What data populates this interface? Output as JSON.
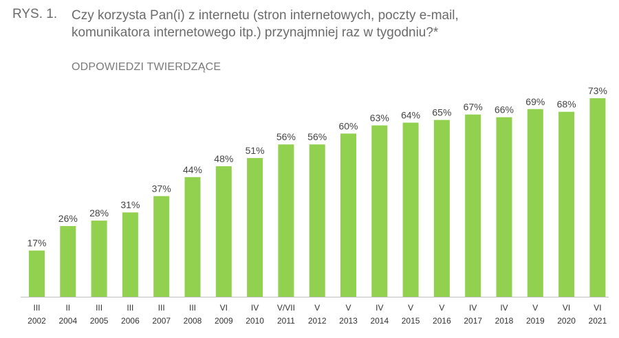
{
  "figure_label": "RYS. 1.",
  "title_line1": "Czy korzysta Pan(i) z internetu (stron internetowych, poczty e-mail,",
  "title_line2": "komunikatora internetowego itp.) przynajmniej raz w tygodniu?*",
  "subtitle": "ODPOWIEDZI TWIERDZĄCE",
  "colors": {
    "bar": "#92d050",
    "axis": "#bfbfbf"
  },
  "chart_data": {
    "type": "bar",
    "title": "Czy korzysta Pan(i) z internetu (stron internetowych, poczty e-mail, komunikatora internetowego itp.) przynajmniej raz w tygodniu?*",
    "subtitle": "ODPOWIEDZI TWIERDZĄCE",
    "categories": [
      {
        "month": "III",
        "year": "2002"
      },
      {
        "month": "II",
        "year": "2004"
      },
      {
        "month": "III",
        "year": "2005"
      },
      {
        "month": "III",
        "year": "2006"
      },
      {
        "month": "III",
        "year": "2007"
      },
      {
        "month": "III",
        "year": "2008"
      },
      {
        "month": "VI",
        "year": "2009"
      },
      {
        "month": "IV",
        "year": "2010"
      },
      {
        "month": "V/VII",
        "year": "2011"
      },
      {
        "month": "V",
        "year": "2012"
      },
      {
        "month": "V",
        "year": "2013"
      },
      {
        "month": "IV",
        "year": "2014"
      },
      {
        "month": "V",
        "year": "2015"
      },
      {
        "month": "V",
        "year": "2016"
      },
      {
        "month": "IV",
        "year": "2017"
      },
      {
        "month": "IV",
        "year": "2018"
      },
      {
        "month": "V",
        "year": "2019"
      },
      {
        "month": "VI",
        "year": "2020"
      },
      {
        "month": "VI",
        "year": "2021"
      }
    ],
    "values": [
      17,
      26,
      28,
      31,
      37,
      44,
      48,
      51,
      56,
      56,
      60,
      63,
      64,
      65,
      67,
      66,
      69,
      68,
      73
    ],
    "value_labels": [
      "17%",
      "26%",
      "28%",
      "31%",
      "37%",
      "44%",
      "48%",
      "51%",
      "56%",
      "56%",
      "60%",
      "63%",
      "64%",
      "65%",
      "67%",
      "66%",
      "69%",
      "68%",
      "73%"
    ],
    "unit": "%",
    "ylim": [
      0,
      100
    ],
    "grid": false,
    "legend": "none"
  }
}
